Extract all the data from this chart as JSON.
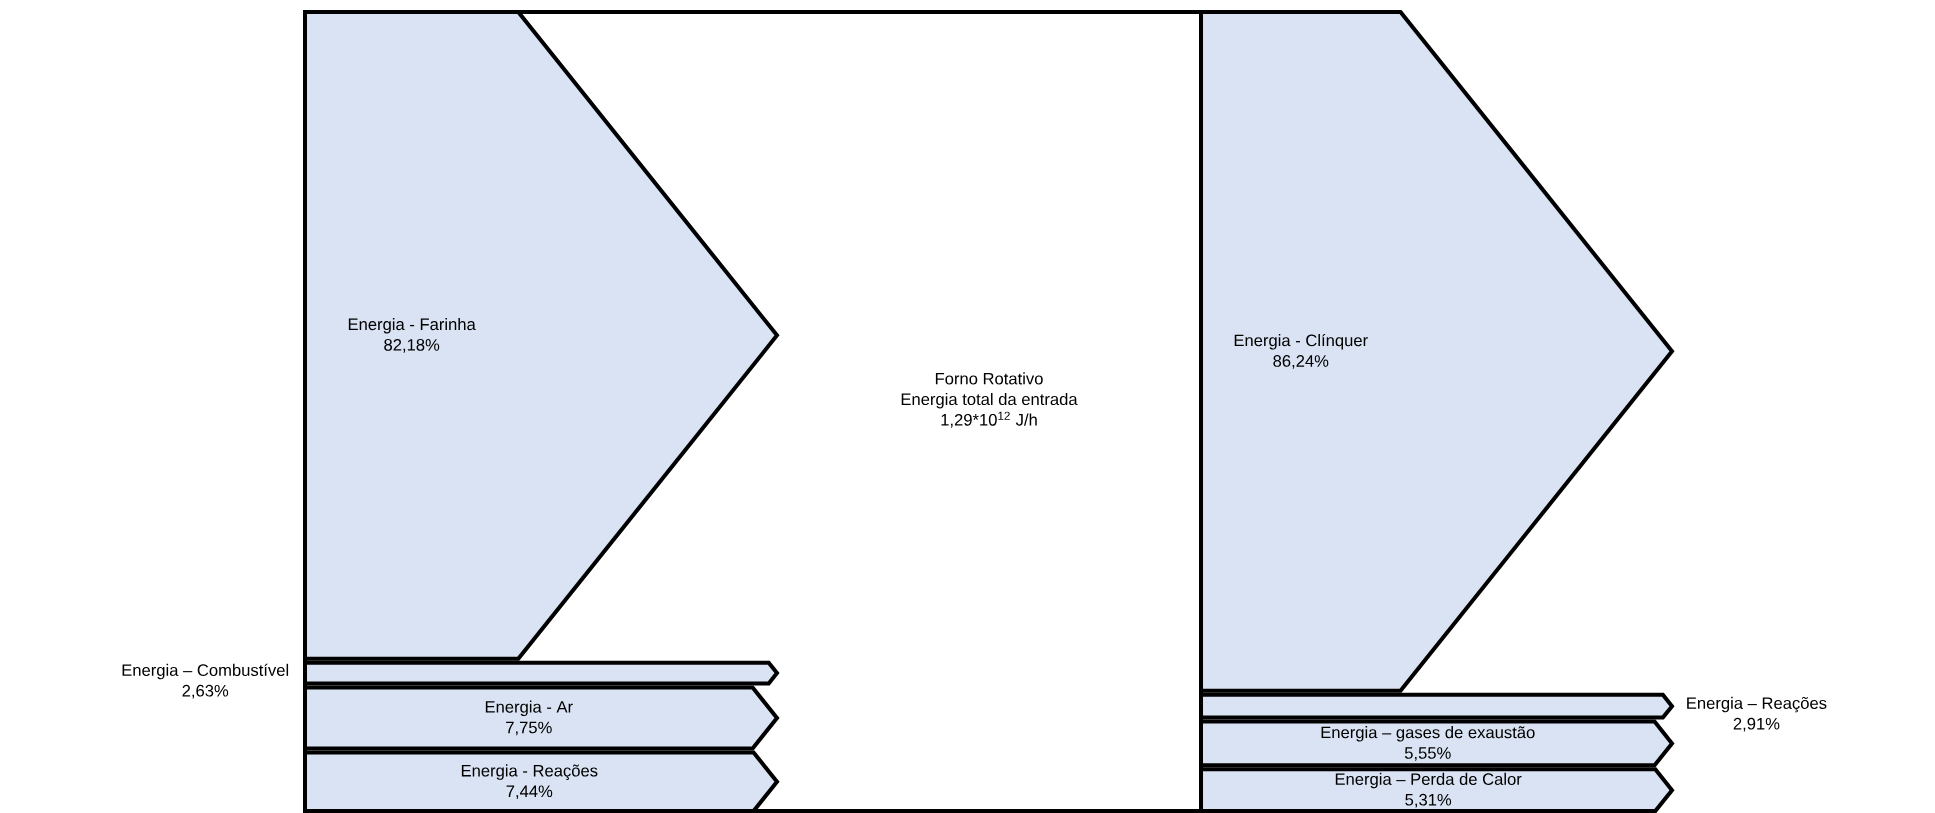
{
  "chart_data": {
    "type": "other",
    "title": "Forno Rotativo",
    "annotations": [
      "Energia total da entrada",
      "1,29*10$^{12}$ J/h"
    ],
    "categories": [
      "Energia - Farinha",
      "Energia – Combustível",
      "Energia - Ar",
      "Energia - Reações",
      "Energia - Clínquer",
      "Energia – Reações",
      "Energia – gases de exaustão",
      "Energia – Perda de Calor"
    ],
    "series": [
      {
        "color": "#dae3f3",
        "values": [
          82.18,
          2.63,
          7.75,
          7.44,
          null,
          null,
          null,
          null
        ],
        "value_labels": [
          "82,18%",
          "2,63%",
          "7,75%",
          "7,44%",
          null,
          null,
          null,
          null
        ]
      },
      {
        "color": "#dae3f3",
        "values": [
          null,
          null,
          null,
          null,
          86.24,
          2.91,
          5.55,
          5.31
        ],
        "value_labels": [
          null,
          null,
          null,
          null,
          "86,24%",
          "2,91%",
          "5,55%",
          "5,31%"
        ]
      }
    ]
  }
}
